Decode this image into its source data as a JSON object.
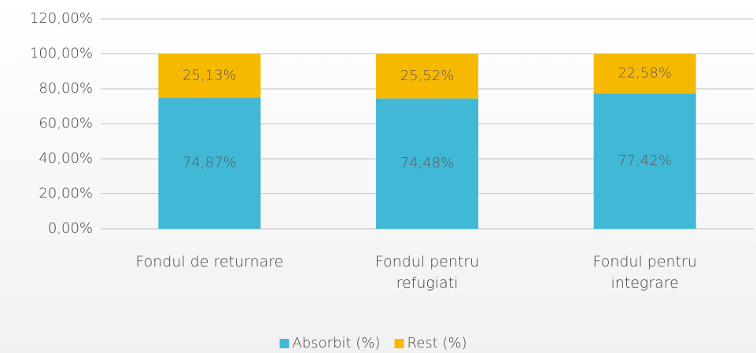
{
  "chart_data": {
    "type": "stacked_bar",
    "categories": [
      "Fondul de returnare",
      "Fondul pentru refugiati",
      "Fondul pentru integrare"
    ],
    "series": [
      {
        "name": "Absorbit (%)",
        "color": "#40b8d6",
        "values": [
          74.87,
          74.48,
          77.42
        ],
        "value_labels": [
          "74,87%",
          "74,48%",
          "77,42%"
        ]
      },
      {
        "name": "Rest (%)",
        "color": "#f7b900",
        "values": [
          25.13,
          25.52,
          22.58
        ],
        "value_labels": [
          "25,13%",
          "25,52%",
          "22,58%"
        ]
      }
    ],
    "ylim": [
      0,
      120
    ],
    "yticks": [
      {
        "value": 0,
        "label": "0,00%"
      },
      {
        "value": 20,
        "label": "20,00%"
      },
      {
        "value": 40,
        "label": "40,00%"
      },
      {
        "value": 60,
        "label": "60,00%"
      },
      {
        "value": 80,
        "label": "80,00%"
      },
      {
        "value": 100,
        "label": "100,00%"
      },
      {
        "value": 120,
        "label": "120,00%"
      }
    ],
    "grid": true,
    "legend": "bottom"
  }
}
